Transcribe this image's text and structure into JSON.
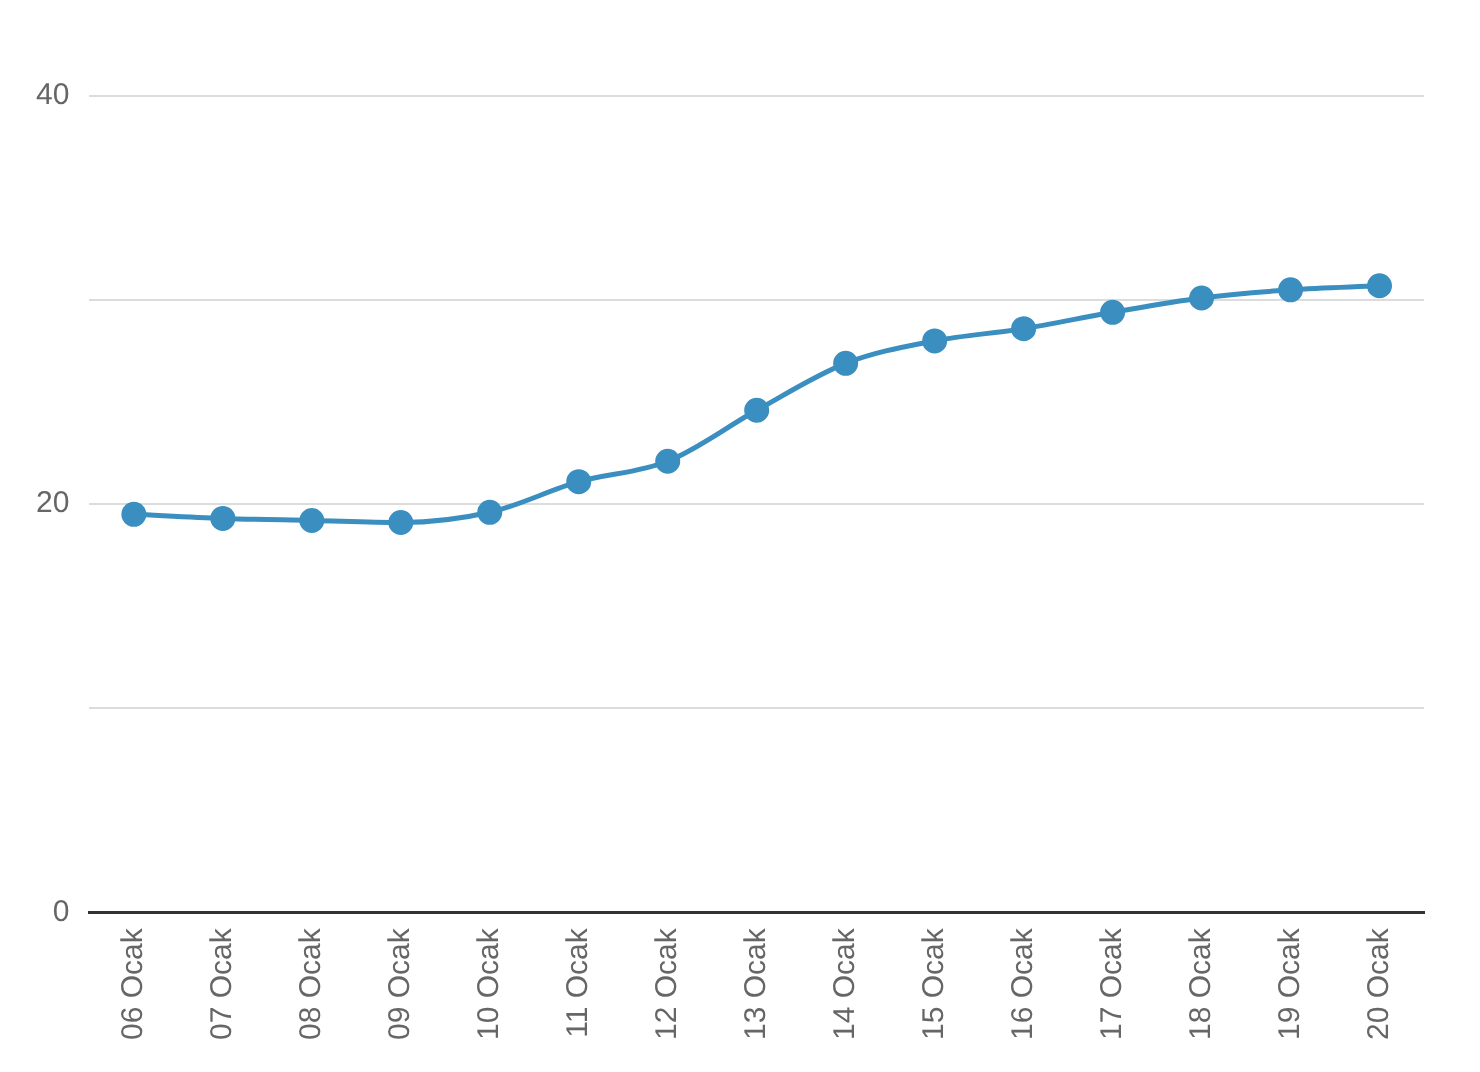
{
  "chart_data": {
    "type": "line",
    "categories": [
      "06 Ocak",
      "07 Ocak",
      "08 Ocak",
      "09 Ocak",
      "10 Ocak",
      "11 Ocak",
      "12 Ocak",
      "13 Ocak",
      "14 Ocak",
      "15 Ocak",
      "16 Ocak",
      "17 Ocak",
      "18 Ocak",
      "19 Ocak",
      "20 Ocak"
    ],
    "series": [
      {
        "color": "#3a8fc0",
        "values": [
          19.5,
          19.3,
          19.2,
          19.1,
          19.6,
          21.1,
          22.1,
          24.6,
          26.9,
          28.0,
          28.6,
          29.4,
          30.1,
          30.5,
          30.7
        ]
      }
    ],
    "ylim": [
      0,
      40
    ],
    "yticks": [
      0,
      {
        "value": 10,
        "label": null
      },
      20,
      {
        "value": 30,
        "label": null
      },
      40
    ],
    "grid": "y",
    "legend": false,
    "marker": "circle",
    "line_style": "solid"
  }
}
